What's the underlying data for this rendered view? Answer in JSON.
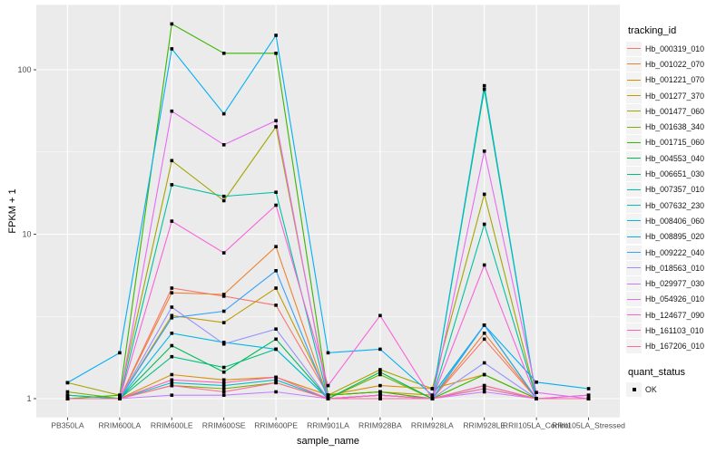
{
  "chart_data": {
    "type": "line",
    "xlabel": "sample_name",
    "ylabel": "FPKM + 1",
    "y_scale": "log10",
    "ylim": [
      0.77,
      249
    ],
    "y_ticks": [
      "1",
      "10",
      "100"
    ],
    "y_tick_values": [
      1,
      10,
      100
    ],
    "y_minor_values": [
      3.1623,
      31.623
    ],
    "grid": "white-on-grey-panel",
    "legend_position": "right",
    "categories": [
      "PB350LA",
      "RRIM600LA",
      "RRIM600LE",
      "RRIM600SE",
      "RRIM600PE",
      "RRIM901LA",
      "RRIM928BA",
      "RRIM928LA",
      "RRIM928LE",
      "RRII105LA_Control",
      "RRII105LA_Stressed"
    ],
    "series": [
      {
        "name": "Hb_000319_010",
        "color": "#F8766D",
        "values": [
          1.0,
          1.0,
          4.7,
          4.2,
          3.7,
          1.05,
          1.1,
          1.0,
          2.3,
          1.0,
          1.0
        ]
      },
      {
        "name": "Hb_001022_070",
        "color": "#EA8331",
        "values": [
          1.0,
          1.0,
          4.4,
          4.3,
          8.4,
          1.0,
          1.05,
          1.0,
          2.5,
          1.0,
          1.0
        ]
      },
      {
        "name": "Hb_001221_070",
        "color": "#D89000",
        "values": [
          1.05,
          1.0,
          1.4,
          1.3,
          1.35,
          1.05,
          1.2,
          1.15,
          1.4,
          1.0,
          1.0
        ]
      },
      {
        "name": "Hb_001277_370",
        "color": "#C09B00",
        "values": [
          1.0,
          1.0,
          3.2,
          2.9,
          4.7,
          1.05,
          1.1,
          1.05,
          2.8,
          1.0,
          1.0
        ]
      },
      {
        "name": "Hb_001477_060",
        "color": "#A3A500",
        "values": [
          1.25,
          1.05,
          28,
          16,
          45,
          1.05,
          1.5,
          1.15,
          17.5,
          1.0,
          1.0
        ]
      },
      {
        "name": "Hb_001638_340",
        "color": "#7CAE00",
        "values": [
          1.1,
          1.0,
          1.2,
          1.15,
          1.25,
          1.0,
          1.4,
          1.0,
          1.2,
          1.0,
          1.0
        ]
      },
      {
        "name": "Hb_001715_060",
        "color": "#39B600",
        "values": [
          1.0,
          1.05,
          190,
          126,
          126,
          1.05,
          1.1,
          1.0,
          1.4,
          1.0,
          1.0
        ]
      },
      {
        "name": "Hb_004553_040",
        "color": "#00BB4E",
        "values": [
          1.0,
          1.0,
          2.1,
          1.45,
          2.3,
          1.0,
          1.45,
          1.0,
          76,
          1.0,
          1.0
        ]
      },
      {
        "name": "Hb_006651_030",
        "color": "#00BF7D",
        "values": [
          1.0,
          1.0,
          1.8,
          1.55,
          2.0,
          1.0,
          1.05,
          1.0,
          2.8,
          1.0,
          1.0
        ]
      },
      {
        "name": "Hb_007357_010",
        "color": "#00C1A3",
        "values": [
          1.05,
          1.0,
          20,
          17,
          18,
          1.0,
          1.0,
          1.0,
          11.5,
          1.0,
          1.0
        ]
      },
      {
        "name": "Hb_007632_230",
        "color": "#00BFC4",
        "values": [
          1.0,
          1.0,
          1.25,
          1.2,
          1.3,
          1.0,
          1.05,
          1.0,
          1.15,
          1.0,
          1.0
        ]
      },
      {
        "name": "Hb_008406_060",
        "color": "#00BAE0",
        "values": [
          1.0,
          1.0,
          2.5,
          2.2,
          2.0,
          1.0,
          1.0,
          1.0,
          80,
          1.0,
          1.05
        ]
      },
      {
        "name": "Hb_008895_020",
        "color": "#00B0F6",
        "values": [
          1.25,
          1.9,
          134,
          54,
          162,
          1.9,
          2.0,
          1.05,
          2.8,
          1.26,
          1.15
        ]
      },
      {
        "name": "Hb_009222_040",
        "color": "#35A2FF",
        "values": [
          1.0,
          1.0,
          3.1,
          3.4,
          6.0,
          1.0,
          1.05,
          1.0,
          2.8,
          1.0,
          1.0
        ]
      },
      {
        "name": "Hb_018563_010",
        "color": "#9590FF",
        "values": [
          1.0,
          1.0,
          3.6,
          2.15,
          2.65,
          1.0,
          1.0,
          1.0,
          1.65,
          1.0,
          1.0
        ]
      },
      {
        "name": "Hb_029977_030",
        "color": "#C77CFF",
        "values": [
          1.0,
          1.0,
          1.05,
          1.05,
          1.1,
          1.0,
          1.0,
          1.0,
          1.1,
          1.0,
          1.0
        ]
      },
      {
        "name": "Hb_054926_010",
        "color": "#E76BF3",
        "values": [
          1.0,
          1.0,
          56,
          35,
          49,
          1.0,
          1.05,
          1.0,
          32,
          1.09,
          1.0
        ]
      },
      {
        "name": "Hb_124677_090",
        "color": "#FA62DB",
        "values": [
          1.0,
          1.0,
          12,
          7.7,
          15,
          1.2,
          3.2,
          1.0,
          6.5,
          1.0,
          1.05
        ]
      },
      {
        "name": "Hb_161103_010",
        "color": "#FF62BC",
        "values": [
          1.0,
          1.0,
          1.3,
          1.25,
          1.35,
          1.0,
          1.05,
          1.0,
          1.2,
          1.0,
          1.0
        ]
      },
      {
        "name": "Hb_167206_010",
        "color": "#FF6A98",
        "values": [
          1.0,
          1.0,
          1.2,
          1.1,
          1.25,
          1.0,
          1.0,
          1.0,
          1.15,
          1.0,
          1.0
        ]
      }
    ],
    "point_marker": {
      "shape": "square",
      "color": "#000000"
    },
    "panel_color": "#EBEBEB",
    "gridline_color": "#FFFFFF",
    "tick_label_color": "#4D4D4D"
  },
  "legend": {
    "tracking_title": "tracking_id",
    "quant_title": "quant_status",
    "quant_ok_label": "OK"
  }
}
